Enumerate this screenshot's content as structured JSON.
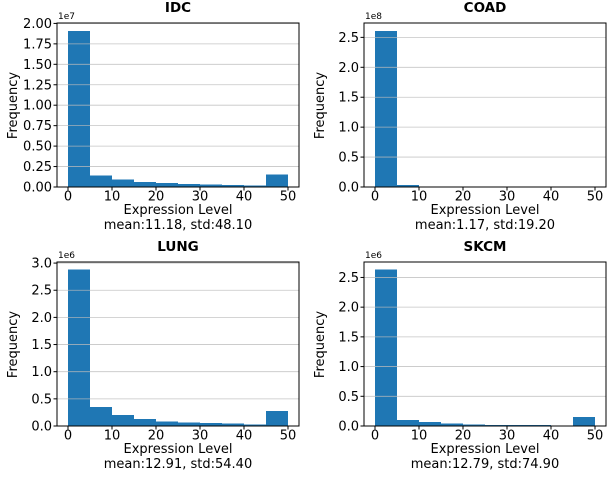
{
  "figure": {
    "background": "#ffffff",
    "bar_color": "#1f77b4",
    "grid_color": "#bcbcbc",
    "axis_color": "#000000",
    "text_color": "#000000"
  },
  "chart_data": [
    {
      "type": "bar",
      "title": "IDC",
      "ylabel": "Frequency",
      "xlabel": "Expression Level",
      "sublabel": "mean:11.18, std:48.10",
      "offset_label": "1e7",
      "bin_edges": [
        0,
        5,
        10,
        15,
        20,
        25,
        30,
        35,
        40,
        45,
        50
      ],
      "values": [
        1.91,
        0.14,
        0.09,
        0.063,
        0.049,
        0.036,
        0.03,
        0.023,
        0.017,
        0.15
      ],
      "xlim": [
        -2.5,
        52.5
      ],
      "ylim": [
        0,
        2.005
      ],
      "xticks": [
        0,
        10,
        20,
        30,
        40,
        50
      ],
      "xtick_labels": [
        "0",
        "10",
        "20",
        "30",
        "40",
        "50"
      ],
      "yticks": [
        0,
        0.25,
        0.5,
        0.75,
        1.0,
        1.25,
        1.5,
        1.75,
        2.0
      ],
      "ytick_labels": [
        "0.00",
        "0.25",
        "0.50",
        "0.75",
        "1.00",
        "1.25",
        "1.50",
        "1.75",
        "2.00"
      ],
      "grid": "y",
      "legend": "none"
    },
    {
      "type": "bar",
      "title": "COAD",
      "ylabel": "Frequency",
      "xlabel": "Expression Level",
      "sublabel": "mean:1.17, std:19.20",
      "offset_label": "1e8",
      "bin_edges": [
        0,
        5,
        10,
        15,
        20,
        25,
        30,
        35,
        40,
        45,
        50
      ],
      "values": [
        2.61,
        0.033,
        0.012,
        0.007,
        0.005,
        0.004,
        0.003,
        0.003,
        0.002,
        0.01
      ],
      "xlim": [
        -2.5,
        52.5
      ],
      "ylim": [
        0,
        2.74
      ],
      "xticks": [
        0,
        10,
        20,
        30,
        40,
        50
      ],
      "xtick_labels": [
        "0",
        "10",
        "20",
        "30",
        "40",
        "50"
      ],
      "yticks": [
        0,
        0.5,
        1.0,
        1.5,
        2.0,
        2.5
      ],
      "ytick_labels": [
        "0.0",
        "0.5",
        "1.0",
        "1.5",
        "2.0",
        "2.5"
      ],
      "grid": "y",
      "legend": "none"
    },
    {
      "type": "bar",
      "title": "LUNG",
      "ylabel": "Frequency",
      "xlabel": "Expression Level",
      "sublabel": "mean:12.91, std:54.40",
      "offset_label": "1e6",
      "bin_edges": [
        0,
        5,
        10,
        15,
        20,
        25,
        30,
        35,
        40,
        45,
        50
      ],
      "values": [
        2.88,
        0.35,
        0.2,
        0.13,
        0.086,
        0.068,
        0.055,
        0.042,
        0.03,
        0.28
      ],
      "xlim": [
        -2.5,
        52.5
      ],
      "ylim": [
        0,
        3.02
      ],
      "xticks": [
        0,
        10,
        20,
        30,
        40,
        50
      ],
      "xtick_labels": [
        "0",
        "10",
        "20",
        "30",
        "40",
        "50"
      ],
      "yticks": [
        0,
        0.5,
        1.0,
        1.5,
        2.0,
        2.5,
        3.0
      ],
      "ytick_labels": [
        "0.0",
        "0.5",
        "1.0",
        "1.5",
        "2.0",
        "2.5",
        "3.0"
      ],
      "grid": "y",
      "legend": "none"
    },
    {
      "type": "bar",
      "title": "SKCM",
      "ylabel": "Frequency",
      "xlabel": "Expression Level",
      "sublabel": "mean:12.79, std:74.90",
      "offset_label": "1e6",
      "bin_edges": [
        0,
        5,
        10,
        15,
        20,
        25,
        30,
        35,
        40,
        45,
        50
      ],
      "values": [
        2.63,
        0.1,
        0.066,
        0.044,
        0.028,
        0.021,
        0.016,
        0.013,
        0.01,
        0.15
      ],
      "xlim": [
        -2.5,
        52.5
      ],
      "ylim": [
        0,
        2.76
      ],
      "xticks": [
        0,
        10,
        20,
        30,
        40,
        50
      ],
      "xtick_labels": [
        "0",
        "10",
        "20",
        "30",
        "40",
        "50"
      ],
      "yticks": [
        0,
        0.5,
        1.0,
        1.5,
        2.0,
        2.5
      ],
      "ytick_labels": [
        "0.0",
        "0.5",
        "1.0",
        "1.5",
        "2.0",
        "2.5"
      ],
      "grid": "y",
      "legend": "none"
    }
  ]
}
